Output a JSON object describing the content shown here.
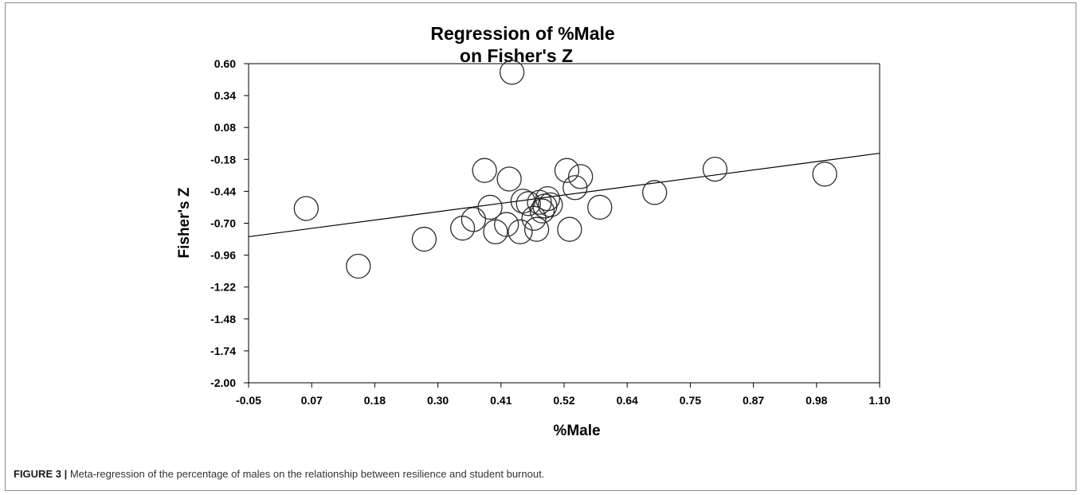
{
  "chart_data": {
    "type": "scatter",
    "title_lines": [
      "Regression of %Male",
      "on Fisher's Z"
    ],
    "xlabel": "%Male",
    "ylabel": "Fisher's Z",
    "xlim": [
      -0.05,
      1.1
    ],
    "ylim": [
      -2.0,
      0.6
    ],
    "x_ticks": [
      "-0.05",
      "0.07",
      "0.18",
      "0.30",
      "0.41",
      "0.52",
      "0.64",
      "0.75",
      "0.87",
      "0.98",
      "1.10"
    ],
    "y_ticks": [
      "0.60",
      "0.34",
      "0.08",
      "-0.18",
      "-0.44",
      "-0.70",
      "-0.96",
      "-1.22",
      "-1.48",
      "-1.74",
      "-2.00"
    ],
    "grid": false,
    "marker": "open-circle",
    "regression_line": {
      "x": [
        -0.05,
        1.1
      ],
      "y": [
        -0.81,
        -0.13
      ]
    },
    "points": [
      {
        "x": 0.055,
        "y": -0.58
      },
      {
        "x": 0.15,
        "y": -1.05
      },
      {
        "x": 0.27,
        "y": -0.83
      },
      {
        "x": 0.34,
        "y": -0.74
      },
      {
        "x": 0.36,
        "y": -0.67
      },
      {
        "x": 0.38,
        "y": -0.27
      },
      {
        "x": 0.39,
        "y": -0.57
      },
      {
        "x": 0.4,
        "y": -0.77
      },
      {
        "x": 0.42,
        "y": -0.71
      },
      {
        "x": 0.425,
        "y": -0.34
      },
      {
        "x": 0.43,
        "y": 0.53
      },
      {
        "x": 0.445,
        "y": -0.77
      },
      {
        "x": 0.45,
        "y": -0.52
      },
      {
        "x": 0.46,
        "y": -0.54
      },
      {
        "x": 0.47,
        "y": -0.66
      },
      {
        "x": 0.475,
        "y": -0.75
      },
      {
        "x": 0.48,
        "y": -0.53
      },
      {
        "x": 0.485,
        "y": -0.6
      },
      {
        "x": 0.49,
        "y": -0.56
      },
      {
        "x": 0.495,
        "y": -0.5
      },
      {
        "x": 0.5,
        "y": -0.55
      },
      {
        "x": 0.53,
        "y": -0.27
      },
      {
        "x": 0.535,
        "y": -0.75
      },
      {
        "x": 0.545,
        "y": -0.41
      },
      {
        "x": 0.555,
        "y": -0.32
      },
      {
        "x": 0.59,
        "y": -0.57
      },
      {
        "x": 0.69,
        "y": -0.45
      },
      {
        "x": 0.8,
        "y": -0.26
      },
      {
        "x": 1.0,
        "y": -0.3
      }
    ]
  },
  "caption": {
    "figure_number": "FIGURE 3 |",
    "text": " Meta-regression of the percentage of males on the relationship between resilience and student burnout."
  },
  "colors": {
    "axis": "#000000",
    "marker_stroke": "#2b2b2b",
    "frame": "#8c8c8c"
  }
}
